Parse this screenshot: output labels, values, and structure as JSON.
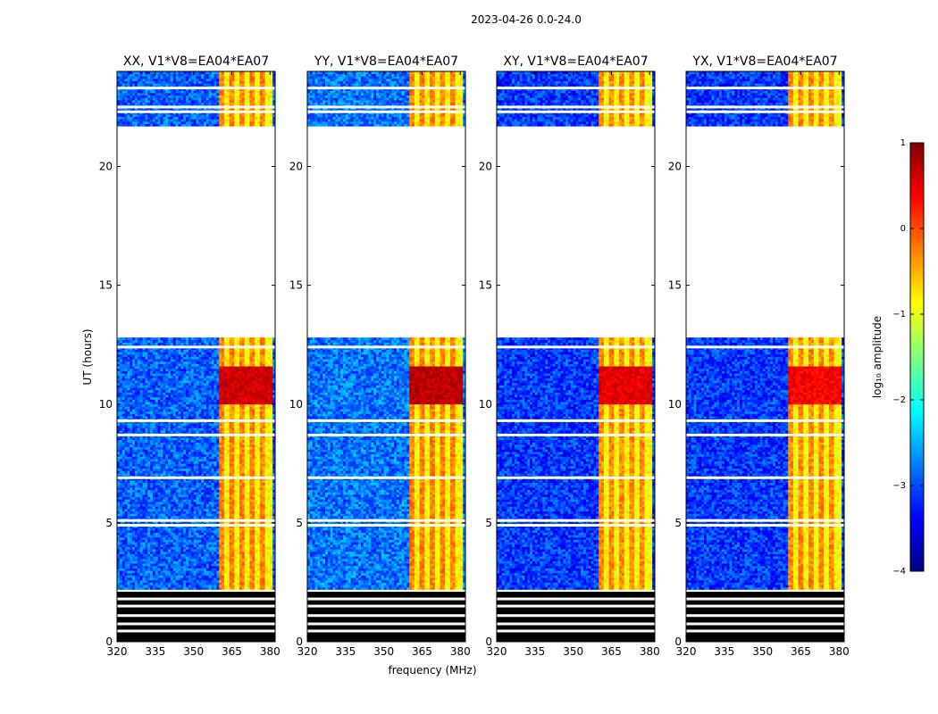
{
  "figure": {
    "suptitle": "2023-04-26 0.0-24.0",
    "xlabel": "frequency (MHz)",
    "ylabel": "UT (hours)",
    "colorbar_label": "log₁₀ amplitude"
  },
  "colors": {
    "jet": [
      "#00007f",
      "#0000ff",
      "#007fff",
      "#00ffff",
      "#7fff7f",
      "#ffff00",
      "#ff7f00",
      "#ff0000",
      "#7f0000"
    ],
    "flag_black": "#000000",
    "gap_white": "#ffffff"
  },
  "chart_data": {
    "type": "heatmap",
    "x_range": [
      320,
      382
    ],
    "y_range": [
      0,
      24
    ],
    "x_ticks": [
      320,
      335,
      350,
      365,
      380
    ],
    "y_ticks": [
      0,
      5,
      10,
      15,
      20
    ],
    "colorbar": {
      "min": -4,
      "max": 1,
      "ticks": [
        -4,
        -3,
        -2,
        -1,
        0,
        1
      ],
      "tick_labels": [
        "−4",
        "−3",
        "−2",
        "−1",
        "0",
        "1"
      ]
    },
    "panels": [
      {
        "title": "XX, V1*V8=EA04*EA07",
        "baseline": -2.9,
        "band_strength": 1.0,
        "rfi_peak": 0.6
      },
      {
        "title": "YY, V1*V8=EA04*EA07",
        "baseline": -2.8,
        "band_strength": 1.0,
        "rfi_peak": 0.7
      },
      {
        "title": "XY, V1*V8=EA04*EA07",
        "baseline": -3.1,
        "band_strength": 0.85,
        "rfi_peak": 0.5
      },
      {
        "title": "YX, V1*V8=EA04*EA07",
        "baseline": -3.1,
        "band_strength": 0.85,
        "rfi_peak": 0.4
      }
    ],
    "rfi_band_mhz": [
      360,
      381
    ],
    "rfi_channels_mhz": [
      361,
      365,
      369,
      373,
      377
    ],
    "rfi_burst_hours": [
      10.0,
      11.5
    ],
    "data_time_ranges_hours": [
      [
        0.0,
        2.1
      ],
      [
        2.2,
        12.8
      ],
      [
        21.7,
        24.0
      ]
    ],
    "flagged_time_range_hours": [
      0.0,
      2.1
    ],
    "flag_gaps_hours": [
      0.45,
      0.75,
      1.1,
      1.5,
      1.8,
      4.9,
      5.1,
      6.9,
      8.7,
      9.3,
      12.4,
      22.3,
      22.5,
      23.3
    ]
  }
}
